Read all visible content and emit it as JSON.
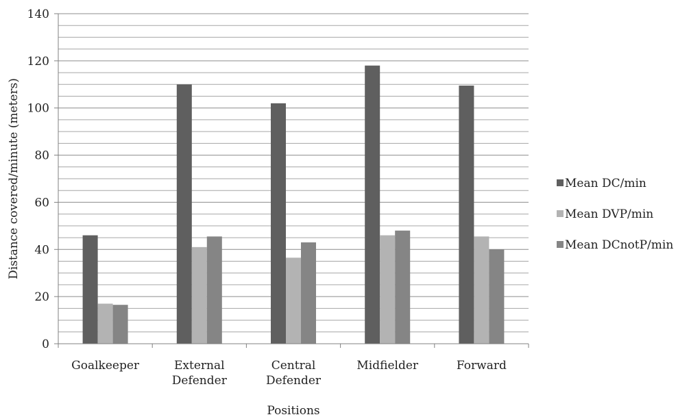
{
  "chart_data": {
    "type": "bar",
    "title": "",
    "xlabel": "Positions",
    "ylabel": "Distance covered/minute (meters)",
    "ylim": [
      0,
      140
    ],
    "major_ticks": [
      0,
      20,
      40,
      60,
      80,
      100,
      120,
      140
    ],
    "minor_step": 5,
    "grid": true,
    "legend_position": "right",
    "categories": [
      [
        "Goalkeeper"
      ],
      [
        "External",
        "Defender"
      ],
      [
        "Central",
        "Defender"
      ],
      [
        "Midfielder"
      ],
      [
        "Forward"
      ]
    ],
    "series": [
      {
        "name": "Mean DC/min",
        "color": "#5f5f5f",
        "values": [
          46,
          110,
          102,
          118,
          109.5
        ]
      },
      {
        "name": "Mean DVP/min",
        "color": "#b3b3b3",
        "values": [
          17,
          41,
          36.5,
          46,
          45.5
        ]
      },
      {
        "name": "Mean DCnotP/min",
        "color": "#858585",
        "values": [
          16.5,
          45.5,
          43,
          48,
          40
        ]
      }
    ]
  }
}
